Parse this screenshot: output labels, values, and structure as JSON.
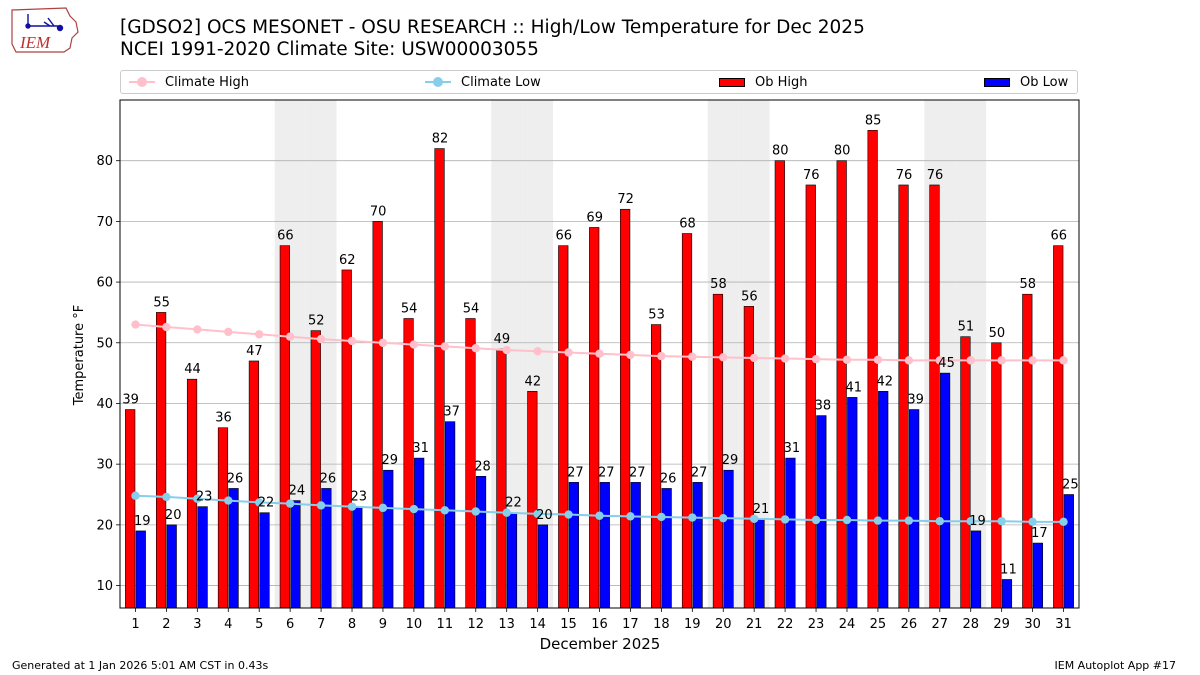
{
  "header": {
    "title_line1": "[GDSO2] OCS MESONET - OSU RESEARCH :: High/Low Temperature for Dec 2025",
    "title_line2": "NCEI 1991-2020 Climate Site: USW00003055",
    "logo_text": "IEM"
  },
  "footer": {
    "generated": "Generated at 1 Jan 2026 5:01 AM CST in 0.43s",
    "app": "IEM Autoplot App #17"
  },
  "colors": {
    "ob_high": "#ff0000",
    "ob_low": "#0000ff",
    "climate_high": "#ffc0cb",
    "climate_low": "#87ceeb",
    "weekend_band": "#eeeeee",
    "grid": "#b0b0b0"
  },
  "legend": {
    "climate_high": "Climate High",
    "climate_low": "Climate Low",
    "ob_high": "Ob High",
    "ob_low": "Ob Low"
  },
  "chart_data": {
    "type": "bar",
    "xlabel": "December 2025",
    "ylabel": "Temperature °F",
    "ylim": [
      6.3,
      90
    ],
    "yticks": [
      10,
      20,
      30,
      40,
      50,
      60,
      70,
      80
    ],
    "grid": "horizontal",
    "legend_position": "top",
    "categories": [
      1,
      2,
      3,
      4,
      5,
      6,
      7,
      8,
      9,
      10,
      11,
      12,
      13,
      14,
      15,
      16,
      17,
      18,
      19,
      20,
      21,
      22,
      23,
      24,
      25,
      26,
      27,
      28,
      29,
      30,
      31
    ],
    "shaded_days": [
      6,
      7,
      13,
      14,
      20,
      21,
      27,
      28
    ],
    "series": [
      {
        "name": "Ob High",
        "kind": "bar",
        "labeled": true,
        "values": [
          39,
          55,
          44,
          36,
          47,
          66,
          52,
          62,
          70,
          54,
          82,
          54,
          49,
          42,
          66,
          69,
          72,
          53,
          68,
          58,
          56,
          80,
          76,
          80,
          85,
          76,
          76,
          51,
          50,
          58,
          66
        ]
      },
      {
        "name": "Ob Low",
        "kind": "bar",
        "labeled": true,
        "values": [
          19,
          20,
          23,
          26,
          22,
          24,
          26,
          23,
          29,
          31,
          37,
          28,
          22,
          20,
          27,
          27,
          27,
          26,
          27,
          29,
          21,
          31,
          38,
          41,
          42,
          39,
          45,
          19,
          11,
          17,
          25
        ]
      },
      {
        "name": "Climate High",
        "kind": "line",
        "values": [
          53.0,
          52.6,
          52.2,
          51.8,
          51.4,
          51.0,
          50.6,
          50.3,
          50.0,
          49.7,
          49.4,
          49.1,
          48.8,
          48.6,
          48.4,
          48.2,
          48.0,
          47.8,
          47.7,
          47.6,
          47.5,
          47.4,
          47.3,
          47.2,
          47.2,
          47.1,
          47.1,
          47.1,
          47.1,
          47.1,
          47.1
        ]
      },
      {
        "name": "Climate Low",
        "kind": "line",
        "values": [
          24.8,
          24.6,
          24.3,
          24.0,
          23.7,
          23.5,
          23.2,
          23.0,
          22.8,
          22.6,
          22.4,
          22.2,
          22.0,
          21.8,
          21.7,
          21.5,
          21.4,
          21.3,
          21.2,
          21.1,
          21.0,
          20.9,
          20.8,
          20.8,
          20.7,
          20.7,
          20.6,
          20.6,
          20.6,
          20.5,
          20.5
        ]
      }
    ]
  }
}
